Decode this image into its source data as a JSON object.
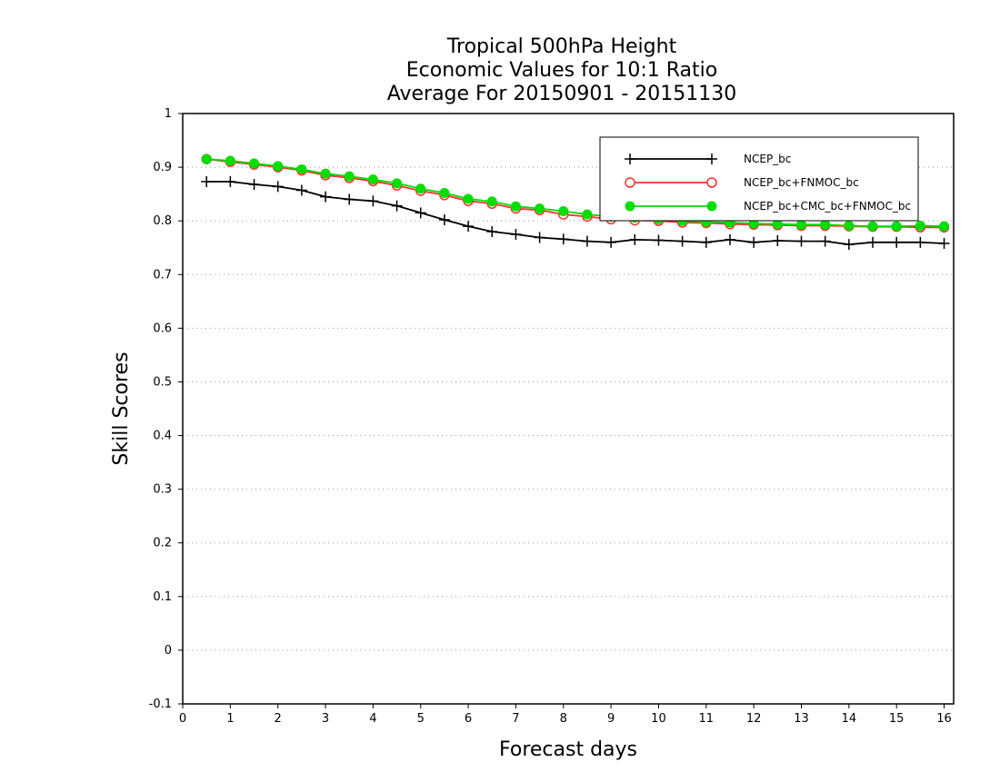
{
  "chart_data": {
    "type": "line",
    "title": [
      "Tropical 500hPa Height",
      "Economic Values for 10:1 Ratio",
      "Average For 20150901 - 20151130"
    ],
    "xlabel": "Forecast days",
    "ylabel": "Skill Scores",
    "xlim": [
      0,
      16.2
    ],
    "ylim": [
      -0.1,
      1
    ],
    "xticks": [
      "0",
      "1",
      "2",
      "3",
      "4",
      "5",
      "6",
      "7",
      "8",
      "9",
      "10",
      "11",
      "12",
      "13",
      "14",
      "15",
      "16"
    ],
    "yticks": [
      "-0.1",
      "0",
      "0.1",
      "0.2",
      "0.3",
      "0.4",
      "0.5",
      "0.6",
      "0.7",
      "0.8",
      "0.9",
      "1"
    ],
    "grid": "horizontal-dotted",
    "legend_position": "top-right",
    "x": [
      0.5,
      1,
      1.5,
      2,
      2.5,
      3,
      3.5,
      4,
      4.5,
      5,
      5.5,
      6,
      6.5,
      7,
      7.5,
      8,
      8.5,
      9,
      9.5,
      10,
      10.5,
      11,
      11.5,
      12,
      12.5,
      13,
      13.5,
      14,
      14.5,
      15,
      15.5,
      16
    ],
    "series": [
      {
        "name": "NCEP_bc",
        "color": "#000000",
        "marker": "plus",
        "values": [
          0.873,
          0.873,
          0.868,
          0.864,
          0.857,
          0.845,
          0.84,
          0.837,
          0.828,
          0.815,
          0.802,
          0.79,
          0.78,
          0.775,
          0.769,
          0.766,
          0.762,
          0.76,
          0.765,
          0.764,
          0.762,
          0.76,
          0.765,
          0.76,
          0.763,
          0.762,
          0.762,
          0.756,
          0.76,
          0.76,
          0.76,
          0.758
        ]
      },
      {
        "name": "NCEP_bc+FNMOC_bc",
        "color": "#ff3030",
        "marker": "open-circle",
        "values": [
          0.915,
          0.91,
          0.905,
          0.9,
          0.894,
          0.885,
          0.88,
          0.874,
          0.866,
          0.856,
          0.848,
          0.837,
          0.832,
          0.823,
          0.82,
          0.812,
          0.808,
          0.803,
          0.801,
          0.8,
          0.797,
          0.796,
          0.794,
          0.793,
          0.792,
          0.791,
          0.791,
          0.79,
          0.789,
          0.789,
          0.788,
          0.788
        ]
      },
      {
        "name": "NCEP_bc+CMC_bc+FNMOC_bc",
        "color": "#00dd00",
        "marker": "filled-circle",
        "values": [
          0.915,
          0.912,
          0.907,
          0.902,
          0.896,
          0.888,
          0.883,
          0.877,
          0.87,
          0.86,
          0.852,
          0.841,
          0.836,
          0.827,
          0.823,
          0.818,
          0.812,
          0.808,
          0.806,
          0.803,
          0.8,
          0.798,
          0.797,
          0.795,
          0.794,
          0.793,
          0.793,
          0.791,
          0.79,
          0.79,
          0.791,
          0.79
        ]
      }
    ]
  }
}
